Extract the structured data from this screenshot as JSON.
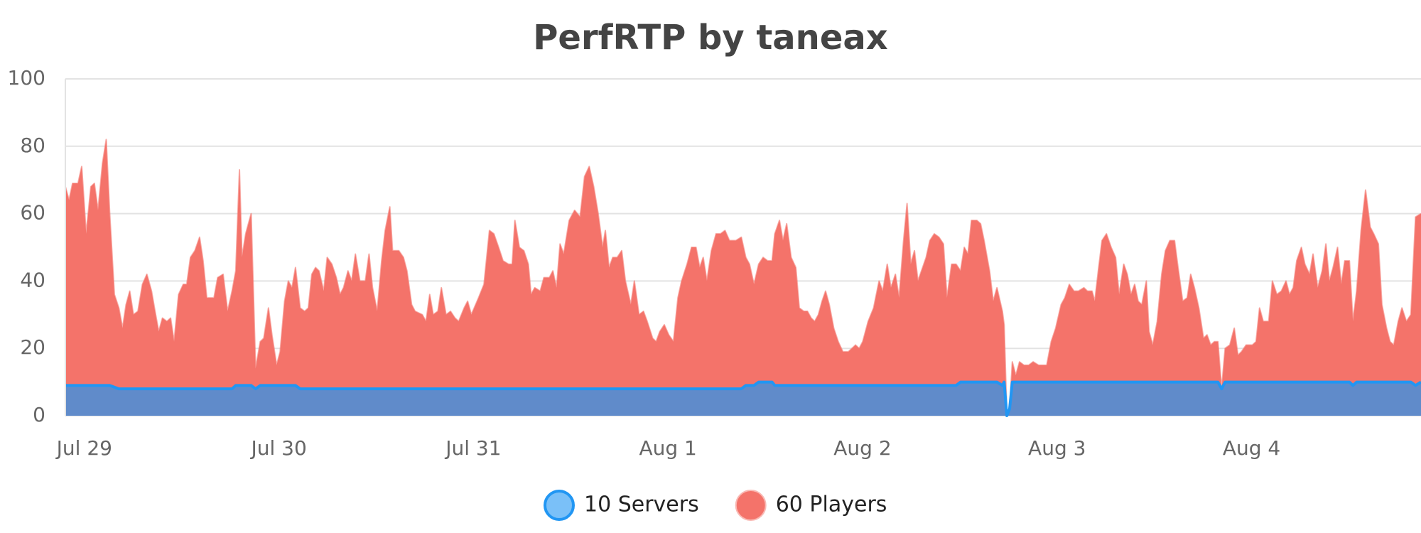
{
  "chart_data": {
    "type": "area",
    "title": "PerfRTP by taneax",
    "x": [
      -0.098,
      -0.079,
      -0.061,
      -0.033,
      -0.014,
      0.009,
      0.033,
      0.051,
      0.07,
      0.093,
      0.112,
      0.13,
      0.154,
      0.177,
      0.196,
      0.214,
      0.233,
      0.252,
      0.275,
      0.298,
      0.321,
      0.345,
      0.363,
      0.382,
      0.401,
      0.424,
      0.443,
      0.461,
      0.484,
      0.508,
      0.526,
      0.545,
      0.568,
      0.592,
      0.61,
      0.629,
      0.666,
      0.685,
      0.713,
      0.736,
      0.759,
      0.778,
      0.797,
      0.81,
      0.829,
      0.857,
      0.88,
      0.904,
      0.922,
      0.946,
      0.964,
      0.988,
      1.006,
      1.029,
      1.048,
      1.067,
      1.085,
      1.109,
      1.132,
      1.151,
      1.169,
      1.188,
      1.206,
      1.23,
      1.248,
      1.272,
      1.295,
      1.314,
      1.332,
      1.355,
      1.374,
      1.393,
      1.416,
      1.444,
      1.463,
      1.481,
      1.505,
      1.528,
      1.546,
      1.57,
      1.584,
      1.616,
      1.64,
      1.658,
      1.682,
      1.7,
      1.737,
      1.756,
      1.775,
      1.793,
      1.817,
      1.835,
      1.859,
      1.882,
      1.905,
      1.924,
      1.952,
      1.97,
      1.989,
      2.026,
      2.054,
      2.082,
      2.105,
      2.129,
      2.152,
      2.18,
      2.199,
      2.213,
      2.236,
      2.259,
      2.282,
      2.296,
      2.315,
      2.343,
      2.362,
      2.39,
      2.408,
      2.427,
      2.445,
      2.464,
      2.492,
      2.52,
      2.548,
      2.571,
      2.595,
      2.618,
      2.641,
      2.664,
      2.678,
      2.697,
      2.716,
      2.739,
      2.762,
      2.781,
      2.809,
      2.827,
      2.851,
      2.874,
      2.893,
      2.921,
      2.939,
      2.958,
      2.981,
      3.004,
      3.028,
      3.051,
      3.07,
      3.098,
      3.121,
      3.144,
      3.163,
      3.181,
      3.2,
      3.223,
      3.247,
      3.27,
      3.293,
      3.316,
      3.349,
      3.377,
      3.4,
      3.419,
      3.442,
      3.466,
      3.489,
      3.512,
      3.535,
      3.549,
      3.573,
      3.591,
      3.61,
      3.633,
      3.657,
      3.675,
      3.698,
      3.717,
      3.736,
      3.754,
      3.773,
      3.792,
      3.81,
      3.829,
      3.852,
      3.875,
      3.899,
      3.927,
      3.964,
      3.983,
      4.001,
      4.029,
      4.057,
      4.085,
      4.104,
      4.127,
      4.146,
      4.169,
      4.188,
      4.211,
      4.229,
      4.248,
      4.267,
      4.285,
      4.309,
      4.327,
      4.346,
      4.369,
      4.393,
      4.416,
      4.434,
      4.458,
      4.481,
      4.504,
      4.523,
      4.542,
      4.56,
      4.588,
      4.607,
      4.625,
      4.653,
      4.672,
      4.691,
      4.719,
      4.728,
      4.742,
      4.756,
      4.77,
      4.788,
      4.807,
      4.83,
      4.854,
      4.877,
      4.905,
      4.947,
      4.97,
      4.993,
      5.021,
      5.04,
      5.063,
      5.087,
      5.11,
      5.138,
      5.156,
      5.18,
      5.194,
      5.212,
      5.231,
      5.254,
      5.278,
      5.301,
      5.319,
      5.343,
      5.361,
      5.38,
      5.399,
      5.417,
      5.436,
      5.459,
      5.473,
      5.492,
      5.515,
      5.538,
      5.557,
      5.58,
      5.604,
      5.622,
      5.646,
      5.669,
      5.687,
      5.706,
      5.729,
      5.753,
      5.771,
      5.79,
      5.809,
      5.827,
      5.846,
      5.864,
      5.888,
      5.911,
      5.93,
      5.948,
      5.972,
      6.004,
      6.023,
      6.041,
      6.06,
      6.088,
      6.107,
      6.13,
      6.153,
      6.177,
      6.195,
      6.214,
      6.232,
      6.256,
      6.274,
      6.298,
      6.316,
      6.34,
      6.363,
      6.382,
      6.4,
      6.419,
      6.442,
      6.461,
      6.479,
      6.503,
      6.521,
      6.54,
      6.563,
      6.586,
      6.61,
      6.628,
      6.652,
      6.67,
      6.694,
      6.712,
      6.731,
      6.754,
      6.773,
      6.796,
      6.819,
      6.843,
      6.871
    ],
    "xlim": [
      -0.098,
      6.871
    ],
    "xticks": [
      {
        "value": 0,
        "label": "Jul 29"
      },
      {
        "value": 1,
        "label": "Jul 30"
      },
      {
        "value": 2,
        "label": "Jul 31"
      },
      {
        "value": 3,
        "label": "Aug 1"
      },
      {
        "value": 4,
        "label": "Aug 2"
      },
      {
        "value": 5,
        "label": "Aug 3"
      },
      {
        "value": 6,
        "label": "Aug 4"
      }
    ],
    "ylim": [
      0,
      100
    ],
    "yticks": [
      0,
      20,
      40,
      60,
      80,
      100
    ],
    "grid": true,
    "legend": "bottom",
    "series": [
      {
        "name": "10 Servers",
        "color": "#2196f3",
        "values": [
          9,
          9,
          9,
          9,
          9,
          9,
          9,
          9,
          9,
          9,
          9,
          9,
          8.5,
          8,
          8,
          8,
          8,
          8,
          8,
          8,
          8,
          8,
          8,
          8,
          8,
          8,
          8,
          8,
          8,
          8,
          8,
          8,
          8,
          8,
          8,
          8,
          8,
          8,
          8,
          8,
          8,
          9,
          9,
          9,
          9,
          9,
          8,
          9,
          9,
          9,
          9,
          9,
          9,
          9,
          9,
          9,
          9,
          8,
          8,
          8,
          8,
          8,
          8,
          8,
          8,
          8,
          8,
          8,
          8,
          8,
          8,
          8,
          8,
          8,
          8,
          8,
          8,
          8,
          8,
          8,
          8,
          8,
          8,
          8,
          8,
          8,
          8,
          8,
          8,
          8,
          8,
          8,
          8,
          8,
          8,
          8,
          8,
          8,
          8,
          8,
          8,
          8,
          8,
          8,
          8,
          8,
          8,
          8,
          8,
          8,
          8,
          8,
          8,
          8,
          8,
          8,
          8,
          8,
          8,
          8,
          8,
          8,
          8,
          8,
          8,
          8,
          8,
          8,
          8,
          8,
          8,
          8,
          8,
          8,
          8,
          8,
          8,
          8,
          8,
          8,
          8,
          8,
          8,
          8,
          8,
          8,
          8,
          8,
          8,
          8,
          8,
          8,
          8,
          8,
          8,
          8,
          8,
          8,
          8,
          8,
          9,
          9,
          9,
          10,
          10,
          10,
          10,
          9,
          9,
          9,
          9,
          9,
          9,
          9,
          9,
          9,
          9,
          9,
          9,
          9,
          9,
          9,
          9,
          9,
          9,
          9,
          9,
          9,
          9,
          9,
          9,
          9,
          9,
          9,
          9,
          9,
          9,
          9,
          9,
          9,
          9,
          9,
          9,
          9,
          9,
          9,
          9,
          9,
          9,
          9,
          9,
          10,
          10,
          10,
          10,
          10,
          10,
          10,
          10,
          10,
          10,
          9,
          10,
          0,
          2,
          10,
          10,
          10,
          10,
          10,
          10,
          10,
          10,
          10,
          10,
          10,
          10,
          10,
          10,
          10,
          10,
          10,
          10,
          10,
          10,
          10,
          10,
          10,
          10,
          10,
          10,
          10,
          10,
          10,
          10,
          10,
          10,
          10,
          10,
          10,
          10,
          10,
          10,
          10,
          10,
          10,
          10,
          10,
          10,
          10,
          10,
          10,
          10,
          10,
          10,
          8,
          10,
          10,
          10,
          10,
          10,
          10,
          10,
          10,
          10,
          10,
          10,
          10,
          10,
          10,
          10,
          10,
          10,
          10,
          10,
          10,
          10,
          10,
          10,
          10,
          10,
          10,
          10,
          10,
          10,
          10,
          10,
          9,
          10,
          10,
          10,
          10,
          10,
          10,
          10,
          10,
          10,
          10,
          10,
          10,
          10,
          10,
          9,
          10
        ]
      },
      {
        "name": "60 Players",
        "color": "#f4736a",
        "values": [
          68,
          64,
          69,
          69,
          74,
          54,
          68,
          69,
          61,
          75,
          82,
          60,
          36,
          32,
          26,
          33,
          37,
          30,
          31,
          39,
          42,
          37,
          31,
          25,
          29,
          28,
          29,
          22,
          36,
          39,
          39,
          47,
          49,
          53,
          46,
          35,
          35,
          41,
          42,
          31,
          37,
          43,
          73,
          47,
          54,
          60,
          14,
          22,
          23,
          32,
          24,
          15,
          19,
          34,
          40,
          38,
          44,
          32,
          31,
          32,
          42,
          44,
          43,
          37,
          47,
          45,
          41,
          36,
          38,
          43,
          40,
          48,
          40,
          40,
          48,
          38,
          31,
          46,
          55,
          62,
          49,
          49,
          47,
          43,
          33,
          31,
          30,
          28,
          36,
          30,
          31,
          38,
          30,
          31,
          29,
          28,
          32,
          34,
          30,
          35,
          39,
          55,
          54,
          50,
          46,
          45,
          45,
          58,
          50,
          49,
          45,
          36,
          38,
          37,
          41,
          41,
          43,
          38,
          51,
          48,
          58,
          61,
          59,
          71,
          74,
          68,
          60,
          50,
          55,
          44,
          47,
          47,
          49,
          40,
          33,
          40,
          30,
          31,
          28,
          23,
          22,
          25,
          27,
          24,
          22,
          35,
          40,
          45,
          50,
          50,
          44,
          47,
          40,
          49,
          54,
          54,
          55,
          52,
          52,
          53,
          47,
          45,
          39,
          45,
          47,
          46,
          46,
          54,
          58,
          52,
          57,
          47,
          44,
          32,
          31,
          31,
          29,
          28,
          30,
          34,
          37,
          33,
          26,
          22,
          19,
          19,
          21,
          20,
          22,
          28,
          32,
          40,
          37,
          45,
          38,
          42,
          35,
          52,
          63,
          45,
          49,
          40,
          44,
          47,
          52,
          54,
          53,
          51,
          35,
          45,
          45,
          43,
          50,
          48,
          58,
          58,
          57,
          52,
          43,
          34,
          38,
          31,
          27,
          0,
          2,
          16,
          12,
          16,
          15,
          15,
          16,
          15,
          15,
          22,
          26,
          33,
          35,
          39,
          37,
          37,
          38,
          37,
          37,
          34,
          43,
          52,
          54,
          50,
          47,
          36,
          45,
          42,
          36,
          39,
          34,
          33,
          40,
          25,
          21,
          28,
          42,
          49,
          52,
          52,
          44,
          34,
          35,
          42,
          38,
          32,
          23,
          24,
          21,
          22,
          22,
          8,
          20,
          21,
          26,
          18,
          19,
          21,
          21,
          22,
          32,
          28,
          28,
          40,
          36,
          37,
          40,
          36,
          38,
          46,
          50,
          45,
          42,
          48,
          38,
          43,
          51,
          40,
          44,
          50,
          39,
          46,
          46,
          28,
          37,
          55,
          67,
          56,
          54,
          51,
          33,
          26,
          22,
          21,
          28,
          32,
          28,
          30,
          59,
          60
        ]
      }
    ]
  }
}
